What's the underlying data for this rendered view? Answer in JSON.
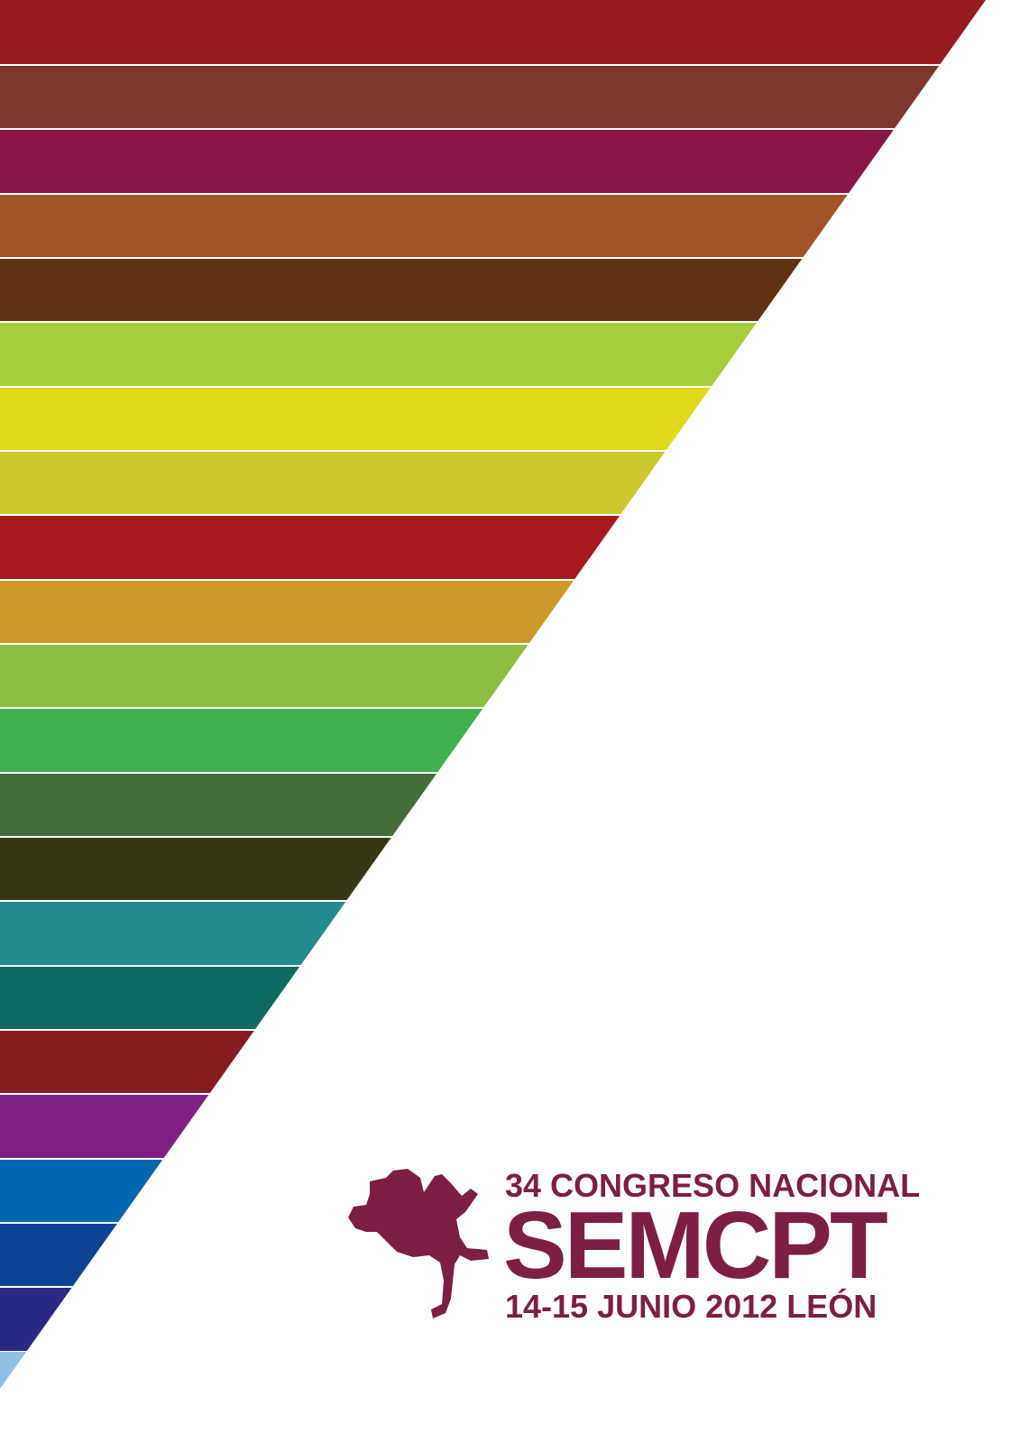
{
  "poster": {
    "edition": "34 CONGRESO NACIONAL",
    "name": "SEMCPT",
    "date_place": "14-15 JUNIO 2012 LEÓN"
  }
}
